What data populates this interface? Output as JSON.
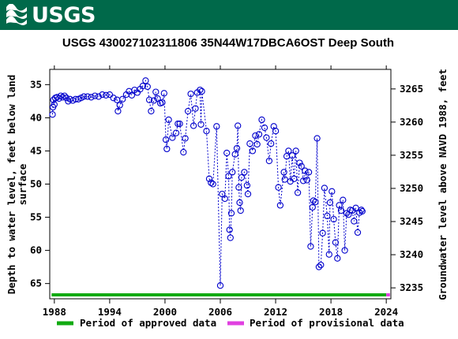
{
  "header": {
    "logo_text": "USGS",
    "banner_color": "#00694a"
  },
  "chart_data": {
    "type": "scatter",
    "title": "USGS 430027102311806 35N44W17DBCA6OST Deep South",
    "ylabel_left": [
      "Depth to water level, feet below land",
      "surface"
    ],
    "ylabel_right": "Groundwater level above NAVD 1988, feet",
    "xlim": [
      1987.5,
      2024.5
    ],
    "ylim": [
      67.3,
      32.7
    ],
    "y_inverted": true,
    "x_ticks": [
      "1988",
      "1994",
      "2000",
      "2006",
      "2012",
      "2018",
      "2024"
    ],
    "x_tick_values": [
      1988,
      1994,
      2000,
      2006,
      2012,
      2018,
      2024
    ],
    "y_ticks_left": [
      "35",
      "40",
      "45",
      "50",
      "55",
      "60",
      "65"
    ],
    "y_tick_values_left": [
      35,
      40,
      45,
      50,
      55,
      60,
      65
    ],
    "y_ticks_right": [
      "3265",
      "3260",
      "3255",
      "3250",
      "3245",
      "3240",
      "3235"
    ],
    "y_tick_values_right_as_depth": [
      35.65,
      40.65,
      45.65,
      50.65,
      55.65,
      60.65,
      65.65
    ],
    "series_color": "#0000cc",
    "approved_period": [
      1987.7,
      2024.0
    ],
    "provisional_period": [
      2024.0,
      2024.4
    ],
    "approved_color": "#11aa11",
    "provisional_color": "#e040e0",
    "legend": [
      {
        "label": "Period of approved data",
        "color": "#11aa11"
      },
      {
        "label": "Period of provisional data",
        "color": "#e040e0"
      }
    ],
    "points": [
      [
        1987.8,
        39.5
      ],
      [
        1987.85,
        38.4
      ],
      [
        1987.9,
        37.3
      ],
      [
        1988.0,
        38.0
      ],
      [
        1988.1,
        37.0
      ],
      [
        1988.3,
        36.9
      ],
      [
        1988.5,
        37.1
      ],
      [
        1988.7,
        36.7
      ],
      [
        1988.9,
        36.9
      ],
      [
        1989.1,
        36.7
      ],
      [
        1989.3,
        37.0
      ],
      [
        1989.5,
        37.5
      ],
      [
        1989.7,
        37.2
      ],
      [
        1990.0,
        37.4
      ],
      [
        1990.3,
        37.2
      ],
      [
        1990.6,
        37.2
      ],
      [
        1990.9,
        37.0
      ],
      [
        1991.2,
        36.8
      ],
      [
        1991.6,
        36.8
      ],
      [
        1992.0,
        36.9
      ],
      [
        1992.4,
        36.7
      ],
      [
        1992.8,
        36.8
      ],
      [
        1993.2,
        36.5
      ],
      [
        1993.6,
        36.6
      ],
      [
        1994.0,
        36.5
      ],
      [
        1994.4,
        37.0
      ],
      [
        1994.8,
        37.3
      ],
      [
        1994.9,
        39.0
      ],
      [
        1995.1,
        38.1
      ],
      [
        1995.4,
        37.2
      ],
      [
        1995.8,
        36.5
      ],
      [
        1996.1,
        36.0
      ],
      [
        1996.4,
        36.6
      ],
      [
        1996.7,
        35.8
      ],
      [
        1997.0,
        36.2
      ],
      [
        1997.3,
        35.7
      ],
      [
        1997.6,
        35.2
      ],
      [
        1997.9,
        34.4
      ],
      [
        1998.1,
        35.3
      ],
      [
        1998.3,
        37.3
      ],
      [
        1998.5,
        39.0
      ],
      [
        1998.8,
        37.4
      ],
      [
        1999.0,
        36.1
      ],
      [
        1999.2,
        37.1
      ],
      [
        1999.5,
        37.8
      ],
      [
        1999.7,
        37.7
      ],
      [
        1999.9,
        36.3
      ],
      [
        2000.1,
        43.3
      ],
      [
        2000.2,
        44.7
      ],
      [
        2000.4,
        40.3
      ],
      [
        2000.8,
        43.0
      ],
      [
        2001.2,
        42.3
      ],
      [
        2001.4,
        40.9
      ],
      [
        2001.6,
        40.9
      ],
      [
        2002.0,
        45.2
      ],
      [
        2002.2,
        43.1
      ],
      [
        2002.5,
        39.0
      ],
      [
        2002.8,
        36.4
      ],
      [
        2003.1,
        41.2
      ],
      [
        2003.3,
        38.6
      ],
      [
        2003.5,
        36.2
      ],
      [
        2003.8,
        35.8
      ],
      [
        2003.9,
        41.0
      ],
      [
        2004.0,
        36.0
      ],
      [
        2004.5,
        42.0
      ],
      [
        2004.8,
        49.2
      ],
      [
        2005.0,
        49.8
      ],
      [
        2005.2,
        50.0
      ],
      [
        2005.6,
        41.3
      ],
      [
        2006.0,
        65.3
      ],
      [
        2006.2,
        51.5
      ],
      [
        2006.5,
        52.2
      ],
      [
        2006.7,
        45.3
      ],
      [
        2006.9,
        48.8
      ],
      [
        2007.0,
        56.9
      ],
      [
        2007.1,
        58.1
      ],
      [
        2007.2,
        54.4
      ],
      [
        2007.3,
        48.2
      ],
      [
        2007.6,
        45.5
      ],
      [
        2007.8,
        44.6
      ],
      [
        2007.9,
        41.2
      ],
      [
        2008.0,
        50.5
      ],
      [
        2008.1,
        52.8
      ],
      [
        2008.2,
        54.0
      ],
      [
        2008.3,
        49.0
      ],
      [
        2008.6,
        48.2
      ],
      [
        2008.9,
        50.2
      ],
      [
        2009.0,
        51.5
      ],
      [
        2009.2,
        43.9
      ],
      [
        2009.5,
        45.0
      ],
      [
        2009.8,
        42.7
      ],
      [
        2010.0,
        44.0
      ],
      [
        2010.2,
        42.5
      ],
      [
        2010.5,
        40.3
      ],
      [
        2010.8,
        41.5
      ],
      [
        2011.0,
        43.0
      ],
      [
        2011.3,
        46.5
      ],
      [
        2011.5,
        43.9
      ],
      [
        2011.8,
        41.3
      ],
      [
        2012.0,
        42.0
      ],
      [
        2012.3,
        50.5
      ],
      [
        2012.5,
        53.2
      ],
      [
        2012.9,
        48.2
      ],
      [
        2013.0,
        49.3
      ],
      [
        2013.2,
        45.8
      ],
      [
        2013.4,
        45.0
      ],
      [
        2013.6,
        49.6
      ],
      [
        2013.8,
        45.7
      ],
      [
        2014.0,
        49.2
      ],
      [
        2014.2,
        45.0
      ],
      [
        2014.4,
        51.3
      ],
      [
        2014.6,
        46.8
      ],
      [
        2014.8,
        47.3
      ],
      [
        2015.0,
        49.5
      ],
      [
        2015.2,
        48.0
      ],
      [
        2015.4,
        49.4
      ],
      [
        2015.6,
        48.2
      ],
      [
        2015.8,
        59.4
      ],
      [
        2016.0,
        53.5
      ],
      [
        2016.1,
        52.5
      ],
      [
        2016.3,
        52.7
      ],
      [
        2016.5,
        43.1
      ],
      [
        2016.7,
        62.5
      ],
      [
        2016.9,
        62.2
      ],
      [
        2017.1,
        57.4
      ],
      [
        2017.3,
        50.6
      ],
      [
        2017.6,
        54.8
      ],
      [
        2017.8,
        60.6
      ],
      [
        2017.9,
        52.8
      ],
      [
        2018.1,
        51.1
      ],
      [
        2018.3,
        55.3
      ],
      [
        2018.5,
        58.8
      ],
      [
        2018.7,
        61.2
      ],
      [
        2018.9,
        53.2
      ],
      [
        2019.1,
        54.0
      ],
      [
        2019.3,
        52.4
      ],
      [
        2019.5,
        60.0
      ],
      [
        2019.7,
        54.4
      ],
      [
        2019.9,
        54.6
      ],
      [
        2020.1,
        53.9
      ],
      [
        2020.3,
        54.0
      ],
      [
        2020.5,
        55.6
      ],
      [
        2020.7,
        53.6
      ],
      [
        2020.9,
        57.3
      ],
      [
        2021.1,
        54.3
      ],
      [
        2021.3,
        53.9
      ],
      [
        2021.4,
        54.1
      ]
    ]
  }
}
